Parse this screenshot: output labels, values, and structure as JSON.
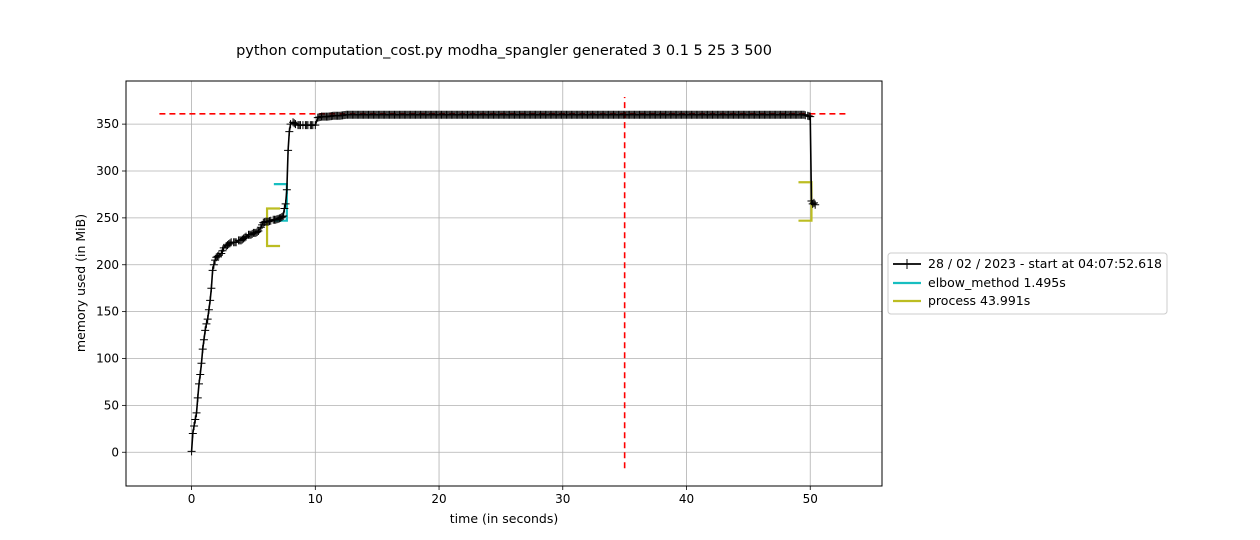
{
  "chart_data": {
    "type": "line",
    "title": "python computation_cost.py modha_spangler generated 3 0.1 5 25 3 500",
    "xlabel": "time (in seconds)",
    "ylabel": "memory used (in MiB)",
    "xlim": [
      -5.3,
      55.8
    ],
    "ylim": [
      -36,
      396
    ],
    "xticks": [
      0,
      10,
      20,
      30,
      40,
      50
    ],
    "yticks": [
      0,
      50,
      100,
      150,
      200,
      250,
      300,
      350
    ],
    "grid": true,
    "legend_position": "center-right-outside",
    "series": [
      {
        "name": "28 / 02 / 2023 - start at 04:07:52.618",
        "color": "#000000",
        "marker": "plus",
        "x": [
          0.0,
          0.1,
          0.2,
          0.3,
          0.4,
          0.5,
          0.6,
          0.7,
          0.8,
          0.9,
          1.0,
          1.1,
          1.2,
          1.3,
          1.4,
          1.5,
          1.6,
          1.7,
          1.8,
          1.9,
          2.0,
          2.2,
          2.4,
          2.6,
          2.8,
          3.0,
          3.2,
          3.4,
          3.6,
          3.8,
          4.0,
          4.2,
          4.4,
          4.6,
          4.8,
          5.0,
          5.2,
          5.4,
          5.6,
          5.8,
          6.0,
          6.2,
          6.4,
          6.6,
          6.8,
          7.0,
          7.2,
          7.4,
          7.5,
          7.6,
          7.7,
          7.8,
          7.9,
          8.0,
          8.2,
          8.4,
          8.6,
          8.8,
          9.0,
          9.2,
          9.4,
          9.6,
          9.8,
          10.0,
          10.2,
          10.5,
          11.0,
          11.5,
          12.0,
          12.5,
          13.0,
          20.0,
          30.0,
          40.0,
          45.0,
          49.5,
          49.8,
          50.0,
          50.1,
          50.2,
          50.3,
          50.4
        ],
        "y": [
          1,
          20,
          28,
          35,
          42,
          58,
          73,
          83,
          95,
          110,
          120,
          130,
          137,
          142,
          152,
          162,
          175,
          194,
          200,
          205,
          208,
          210,
          212,
          218,
          220,
          222,
          224,
          224,
          224,
          226,
          226,
          228,
          230,
          232,
          232,
          234,
          234,
          236,
          240,
          245,
          246,
          246,
          247,
          248,
          248,
          249,
          250,
          252,
          260,
          265,
          280,
          322,
          342,
          350,
          352,
          350,
          349,
          349,
          349,
          349,
          349,
          349,
          349,
          349,
          357,
          358,
          358,
          359,
          359,
          360,
          360,
          360,
          360,
          360,
          360,
          360,
          359,
          358,
          268,
          265,
          266,
          264
        ]
      }
    ],
    "brackets": [
      {
        "name": "elbow_method 1.495s",
        "color": "#17bec0",
        "x_start": 6.5,
        "x_end": 7.7,
        "y_low": 247,
        "y_high": 286
      },
      {
        "name": "process 43.991s",
        "color": "#bcbd22",
        "x_start": 6.1,
        "x_end": 50.1,
        "y_low_start": 220,
        "y_high_start": 260,
        "y_low_end": 247,
        "y_high_end": 288
      }
    ],
    "reference_lines": [
      {
        "orientation": "horizontal",
        "value": 361,
        "x_from": -2.6,
        "x_to": 53.0,
        "color": "#ff0000",
        "style": "dashed"
      },
      {
        "orientation": "vertical",
        "value": 35.0,
        "y_from": -17,
        "y_to": 379,
        "color": "#ff0000",
        "style": "dashed"
      }
    ]
  }
}
